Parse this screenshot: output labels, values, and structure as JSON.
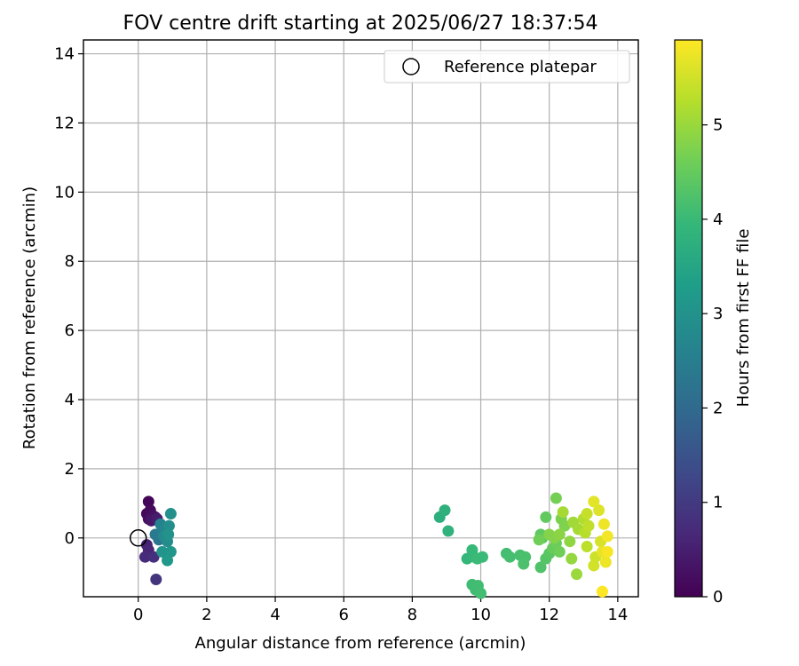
{
  "chart_data": {
    "type": "scatter",
    "title": "FOV centre drift starting at 2025/06/27 18:37:54",
    "xlabel": "Angular distance from reference (arcmin)",
    "ylabel": "Rotation from reference (arcmin)",
    "xlim": [
      -1.6,
      14.6
    ],
    "ylim": [
      -1.7,
      14.4
    ],
    "xticks": [
      0,
      2,
      4,
      6,
      8,
      10,
      12,
      14
    ],
    "yticks": [
      0,
      2,
      4,
      6,
      8,
      10,
      12,
      14
    ],
    "grid": true,
    "legend": {
      "position": "upper right",
      "entries": [
        "Reference platepar"
      ]
    },
    "reference": {
      "x": 0,
      "y": 0
    },
    "colorbar": {
      "label": "Hours from first FF file",
      "colormap": "viridis",
      "range": [
        0,
        5.9
      ],
      "ticks": [
        0,
        1,
        2,
        3,
        4,
        5
      ]
    },
    "points": [
      {
        "x": 0.3,
        "y": 1.05,
        "t": 0.05
      },
      {
        "x": 0.25,
        "y": 0.7,
        "t": 0.1
      },
      {
        "x": 0.35,
        "y": 0.8,
        "t": 0.15
      },
      {
        "x": 0.3,
        "y": 0.55,
        "t": 0.2
      },
      {
        "x": 0.42,
        "y": 0.65,
        "t": 0.25
      },
      {
        "x": 0.5,
        "y": 0.6,
        "t": 0.3
      },
      {
        "x": 0.38,
        "y": 0.5,
        "t": 0.35
      },
      {
        "x": 0.55,
        "y": 0.55,
        "t": 0.45
      },
      {
        "x": 0.25,
        "y": -0.2,
        "t": 0.55
      },
      {
        "x": 0.3,
        "y": -0.35,
        "t": 0.6
      },
      {
        "x": 0.2,
        "y": -0.55,
        "t": 0.7
      },
      {
        "x": 0.45,
        "y": -0.55,
        "t": 0.8
      },
      {
        "x": 0.52,
        "y": -1.2,
        "t": 0.9
      },
      {
        "x": 0.6,
        "y": -0.05,
        "t": 2.3
      },
      {
        "x": 0.5,
        "y": 0.1,
        "t": 2.4
      },
      {
        "x": 0.7,
        "y": 0.2,
        "t": 2.5
      },
      {
        "x": 0.65,
        "y": 0.4,
        "t": 2.6
      },
      {
        "x": 0.8,
        "y": 0.3,
        "t": 2.7
      },
      {
        "x": 0.75,
        "y": 0.05,
        "t": 2.8
      },
      {
        "x": 0.85,
        "y": -0.1,
        "t": 2.85
      },
      {
        "x": 0.9,
        "y": 0.35,
        "t": 2.9
      },
      {
        "x": 0.95,
        "y": 0.7,
        "t": 2.95
      },
      {
        "x": 0.88,
        "y": 0.1,
        "t": 3.0
      },
      {
        "x": 0.7,
        "y": -0.4,
        "t": 3.05
      },
      {
        "x": 0.95,
        "y": -0.4,
        "t": 3.1
      },
      {
        "x": 0.85,
        "y": -0.65,
        "t": 3.15
      },
      {
        "x": 8.8,
        "y": 0.6,
        "t": 3.7
      },
      {
        "x": 8.95,
        "y": 0.8,
        "t": 3.75
      },
      {
        "x": 9.05,
        "y": 0.2,
        "t": 3.8
      },
      {
        "x": 9.6,
        "y": -0.6,
        "t": 3.9
      },
      {
        "x": 9.75,
        "y": -0.35,
        "t": 3.95
      },
      {
        "x": 9.8,
        "y": -0.55,
        "t": 3.95
      },
      {
        "x": 9.9,
        "y": -0.6,
        "t": 4.0
      },
      {
        "x": 10.05,
        "y": -0.55,
        "t": 4.0
      },
      {
        "x": 9.75,
        "y": -1.35,
        "t": 4.05
      },
      {
        "x": 9.85,
        "y": -1.5,
        "t": 4.05
      },
      {
        "x": 9.92,
        "y": -1.38,
        "t": 4.08
      },
      {
        "x": 10.0,
        "y": -1.6,
        "t": 4.1
      },
      {
        "x": 10.75,
        "y": -0.45,
        "t": 4.1
      },
      {
        "x": 10.85,
        "y": -0.55,
        "t": 4.12
      },
      {
        "x": 11.15,
        "y": -0.5,
        "t": 4.15
      },
      {
        "x": 11.3,
        "y": -0.55,
        "t": 4.18
      },
      {
        "x": 11.25,
        "y": -0.75,
        "t": 4.2
      },
      {
        "x": 11.75,
        "y": -0.85,
        "t": 4.25
      },
      {
        "x": 11.9,
        "y": -0.6,
        "t": 4.3
      },
      {
        "x": 12.0,
        "y": -0.45,
        "t": 4.35
      },
      {
        "x": 11.75,
        "y": 0.1,
        "t": 4.4
      },
      {
        "x": 11.8,
        "y": 0.0,
        "t": 4.4
      },
      {
        "x": 11.9,
        "y": 0.6,
        "t": 4.45
      },
      {
        "x": 12.1,
        "y": -0.3,
        "t": 4.5
      },
      {
        "x": 12.2,
        "y": -0.15,
        "t": 4.55
      },
      {
        "x": 12.3,
        "y": -0.4,
        "t": 4.6
      },
      {
        "x": 11.7,
        "y": -0.05,
        "t": 4.6
      },
      {
        "x": 12.2,
        "y": 1.15,
        "t": 4.65
      },
      {
        "x": 12.35,
        "y": 0.55,
        "t": 4.7
      },
      {
        "x": 12.45,
        "y": 0.35,
        "t": 4.75
      },
      {
        "x": 12.0,
        "y": 0.1,
        "t": 4.8
      },
      {
        "x": 12.15,
        "y": 0.0,
        "t": 4.8
      },
      {
        "x": 12.3,
        "y": 0.1,
        "t": 4.85
      },
      {
        "x": 12.6,
        "y": -0.1,
        "t": 4.9
      },
      {
        "x": 12.65,
        "y": -0.6,
        "t": 4.95
      },
      {
        "x": 12.8,
        "y": -1.05,
        "t": 5.0
      },
      {
        "x": 12.7,
        "y": 0.45,
        "t": 5.05
      },
      {
        "x": 12.85,
        "y": 0.25,
        "t": 5.1
      },
      {
        "x": 12.4,
        "y": 0.75,
        "t": 5.1
      },
      {
        "x": 13.0,
        "y": 0.55,
        "t": 5.2
      },
      {
        "x": 13.05,
        "y": 0.15,
        "t": 5.25
      },
      {
        "x": 13.1,
        "y": -0.25,
        "t": 5.3
      },
      {
        "x": 13.15,
        "y": 0.35,
        "t": 5.35
      },
      {
        "x": 13.1,
        "y": 0.7,
        "t": 5.4
      },
      {
        "x": 13.35,
        "y": -0.55,
        "t": 5.45
      },
      {
        "x": 13.3,
        "y": -0.8,
        "t": 5.5
      },
      {
        "x": 13.5,
        "y": -0.1,
        "t": 5.55
      },
      {
        "x": 13.45,
        "y": 0.8,
        "t": 5.6
      },
      {
        "x": 13.3,
        "y": 1.05,
        "t": 5.65
      },
      {
        "x": 13.55,
        "y": -0.4,
        "t": 5.7
      },
      {
        "x": 13.65,
        "y": -0.7,
        "t": 5.75
      },
      {
        "x": 13.6,
        "y": 0.4,
        "t": 5.75
      },
      {
        "x": 13.7,
        "y": 0.05,
        "t": 5.8
      },
      {
        "x": 13.7,
        "y": -0.4,
        "t": 5.85
      },
      {
        "x": 13.55,
        "y": -1.55,
        "t": 5.9
      }
    ]
  }
}
